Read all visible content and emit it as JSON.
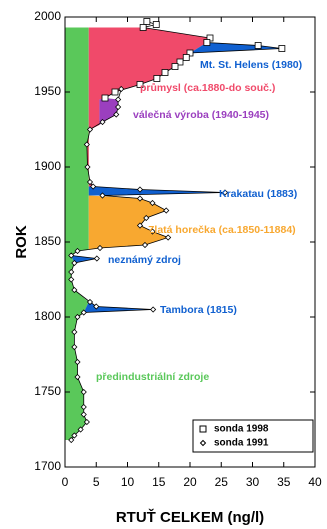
{
  "chart_data": {
    "type": "profile",
    "x_label": "RTUŤ CELKEM (ng/l)",
    "y_label": "ROK",
    "xlim": [
      0,
      40
    ],
    "ylim": [
      1700,
      2000
    ],
    "xticks": [
      0,
      5,
      10,
      15,
      20,
      25,
      30,
      35,
      40
    ],
    "yticks": [
      1700,
      1750,
      1800,
      1850,
      1900,
      1950,
      2000
    ],
    "areas": [
      {
        "label": "předindustriální zdroje",
        "color": "#5ac85a",
        "x": [
          0,
          3.8,
          3.8,
          2,
          1,
          1.5,
          1,
          1,
          1.5,
          3.8,
          3,
          2,
          1.5,
          1.5,
          2,
          2,
          3,
          3,
          3,
          3.5,
          2.5,
          1.5,
          1,
          0
        ],
        "y": [
          1993,
          1993,
          1845,
          1844,
          1841,
          1836,
          1830,
          1825,
          1818,
          1810,
          1803,
          1800,
          1790,
          1780,
          1770,
          1760,
          1750,
          1740,
          1735,
          1730,
          1725,
          1721,
          1718,
          1718
        ]
      },
      {
        "label": "neznámý zdroj",
        "color": "#1060d0",
        "x": [
          1,
          5.1,
          1.5
        ],
        "y": [
          1841,
          1839,
          1836
        ]
      },
      {
        "label": "Tambora (1815)",
        "color": "#1060d0",
        "x": [
          3.8,
          5,
          14.1,
          3
        ],
        "y": [
          1810,
          1807,
          1805,
          1803
        ]
      },
      {
        "label": "Zlatá horečka (ca.1850-11884)",
        "color": "#f8a830",
        "x": [
          3.8,
          12,
          14,
          16.2,
          13,
          12,
          14,
          16.5,
          12.8,
          5.6,
          3.8
        ],
        "y": [
          1881,
          1879,
          1876,
          1871,
          1866,
          1861,
          1857,
          1853,
          1848,
          1846,
          1845
        ]
      },
      {
        "label": "Krakatau (1883)",
        "color": "#1060d0",
        "x": [
          3.8,
          4.5,
          12,
          25.6,
          6,
          3.8
        ],
        "y": [
          1887,
          1887,
          1885,
          1883,
          1881,
          1881
        ]
      },
      {
        "label": "průmysl (ca.1880-do souč.)",
        "color": "#f04a6a",
        "x": [
          3.8,
          4.5,
          4,
          3.6,
          3.5,
          4,
          5.5,
          5.5,
          6.4,
          8,
          12,
          14.7,
          16,
          17.6,
          18.4,
          19.4,
          20,
          22.7,
          23.2,
          12.5,
          3.8
        ],
        "y": [
          1887,
          1887,
          1890,
          1900,
          1915,
          1925,
          1928,
          1945,
          1946,
          1950,
          1955,
          1959,
          1963,
          1967,
          1970,
          1973,
          1976,
          1983,
          1986,
          1993,
          1993
        ]
      },
      {
        "label": "válečná výroba (1940-1945)",
        "color": "#9b3fbf",
        "x": [
          5.5,
          6,
          8.2,
          8.5,
          8.5,
          6.4,
          5.5
        ],
        "y": [
          1928,
          1930,
          1935,
          1940,
          1945,
          1946,
          1945
        ]
      },
      {
        "label": "Mt. St. Helens (1980)",
        "color": "#1060d0",
        "x": [
          20,
          34.7,
          30.9,
          22.7
        ],
        "y": [
          1976,
          1979,
          1981,
          1983
        ]
      }
    ],
    "series": [
      {
        "name": "sonda 1998",
        "marker": "square",
        "x": [
          13.1,
          14.6,
          12.5,
          23.2,
          22.7,
          30.9,
          34.7,
          20,
          19.4,
          18.4,
          17.6,
          16,
          14.7,
          12,
          8,
          6.4
        ],
        "values": [
          1997,
          1995,
          1993,
          1986,
          1983,
          1981,
          1979,
          1976,
          1973,
          1970,
          1967,
          1963,
          1959,
          1955,
          1950,
          1946
        ]
      },
      {
        "name": "sonda 1991",
        "marker": "diamond",
        "x": [
          9,
          8.5,
          8.5,
          8.2,
          6,
          4,
          3.5,
          3.6,
          4,
          4.5,
          12,
          25.6,
          6,
          12,
          14,
          16.2,
          13,
          12,
          14,
          16.5,
          12.8,
          5.6,
          2,
          1,
          5.1,
          1.5,
          1,
          1,
          1.5,
          4,
          5,
          14.1,
          3,
          2,
          1.5,
          1.5,
          2,
          2,
          3,
          3,
          3,
          3.5,
          2.5,
          1.5,
          1
        ],
        "values": [
          1952,
          1945,
          1940,
          1935,
          1930,
          1925,
          1915,
          1900,
          1890,
          1887,
          1885,
          1883,
          1881,
          1879,
          1876,
          1871,
          1866,
          1861,
          1857,
          1853,
          1848,
          1846,
          1844,
          1841,
          1839,
          1836,
          1830,
          1825,
          1818,
          1810,
          1807,
          1805,
          1803,
          1800,
          1790,
          1780,
          1770,
          1760,
          1750,
          1740,
          1735,
          1730,
          1725,
          1721,
          1718
        ]
      }
    ]
  }
}
